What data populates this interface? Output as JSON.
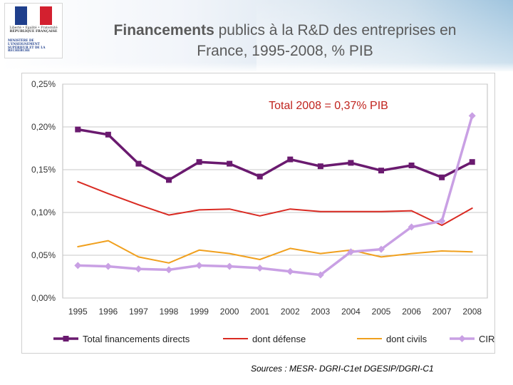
{
  "logo": {
    "motto": "Liberté • Égalité • Fraternité",
    "republic": "RÉPUBLIQUE FRANÇAISE",
    "ministry": "MINISTÈRE DE L'ENSEIGNEMENT SUPÉRIEUR ET DE LA RECHERCHE"
  },
  "title": {
    "line1_emphasis": "Financements",
    "line1_rest": " publics à la R&D des entreprises en",
    "line2": "France, 1995-2008, % PIB"
  },
  "chart_data": {
    "type": "line",
    "title": "Financements publics à la R&D des entreprises en France, 1995-2008, % PIB",
    "annotation": "Total 2008 = 0,37% PIB",
    "categories": [
      "1995",
      "1996",
      "1997",
      "1998",
      "1999",
      "2000",
      "2001",
      "2002",
      "2003",
      "2004",
      "2005",
      "2006",
      "2007",
      "2008"
    ],
    "ylim": [
      0,
      0.25
    ],
    "yticks": [
      0,
      0.05,
      0.1,
      0.15,
      0.2,
      0.25
    ],
    "ytick_labels": [
      "0,00%",
      "0,05%",
      "0,10%",
      "0,15%",
      "0,20%",
      "0,25%"
    ],
    "xlabel": "",
    "ylabel": "",
    "grid": true,
    "legend_position": "bottom",
    "series": [
      {
        "name": "Total financements directs",
        "color": "#6a1a6f",
        "marker": "square",
        "values": [
          0.197,
          0.191,
          0.157,
          0.138,
          0.159,
          0.157,
          0.142,
          0.162,
          0.154,
          0.158,
          0.149,
          0.155,
          0.141,
          0.159
        ]
      },
      {
        "name": "dont défense",
        "color": "#d92a22",
        "marker": "none",
        "values": [
          0.136,
          0.122,
          0.109,
          0.097,
          0.103,
          0.104,
          0.096,
          0.104,
          0.101,
          0.101,
          0.101,
          0.102,
          0.085,
          0.105
        ]
      },
      {
        "name": "dont civils",
        "color": "#f0a01e",
        "marker": "none",
        "values": [
          0.06,
          0.067,
          0.048,
          0.041,
          0.056,
          0.052,
          0.045,
          0.058,
          0.052,
          0.056,
          0.048,
          0.052,
          0.055,
          0.054
        ]
      },
      {
        "name": "CIR",
        "color": "#c9a0e4",
        "marker": "diamond",
        "values": [
          0.038,
          0.037,
          0.034,
          0.033,
          0.038,
          0.037,
          0.035,
          0.031,
          0.027,
          0.054,
          0.057,
          0.083,
          0.09,
          0.213
        ]
      }
    ]
  },
  "sources": "Sources : MESR- DGRI-C1et DGESIP/DGRI-C1"
}
